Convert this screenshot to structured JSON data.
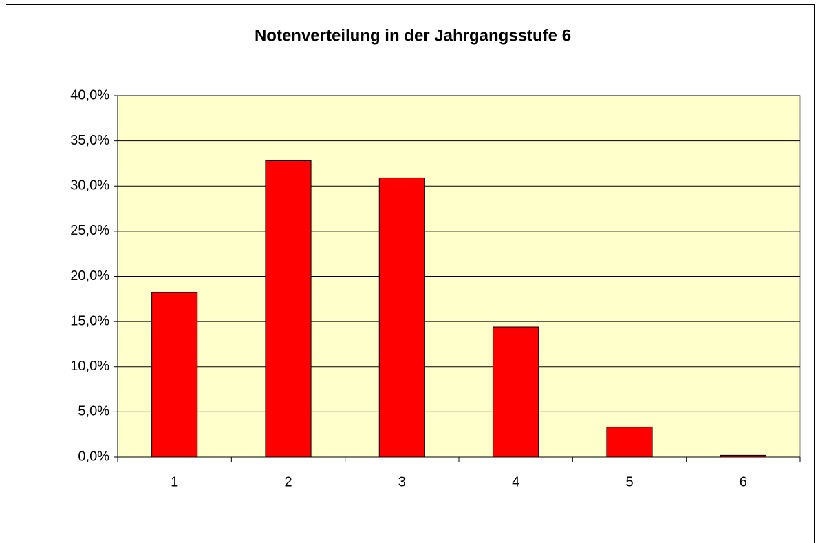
{
  "chart_data": {
    "type": "bar",
    "title": "Notenverteilung in der Jahrgangsstufe 6",
    "categories": [
      "1",
      "2",
      "3",
      "4",
      "5",
      "6"
    ],
    "values": [
      18.2,
      32.8,
      30.9,
      14.4,
      3.3,
      0.2
    ],
    "color": "#ff0000",
    "ylim": [
      0,
      40
    ],
    "yticks": [
      {
        "value": 0,
        "label": "0,0%"
      },
      {
        "value": 5,
        "label": "5,0%"
      },
      {
        "value": 10,
        "label": "10,0%"
      },
      {
        "value": 15,
        "label": "15,0%"
      },
      {
        "value": 20,
        "label": "20,0%"
      },
      {
        "value": 25,
        "label": "25,0%"
      },
      {
        "value": 30,
        "label": "30,0%"
      },
      {
        "value": 35,
        "label": "35,0%"
      },
      {
        "value": 40,
        "label": "40,0%"
      }
    ],
    "grid": true
  }
}
